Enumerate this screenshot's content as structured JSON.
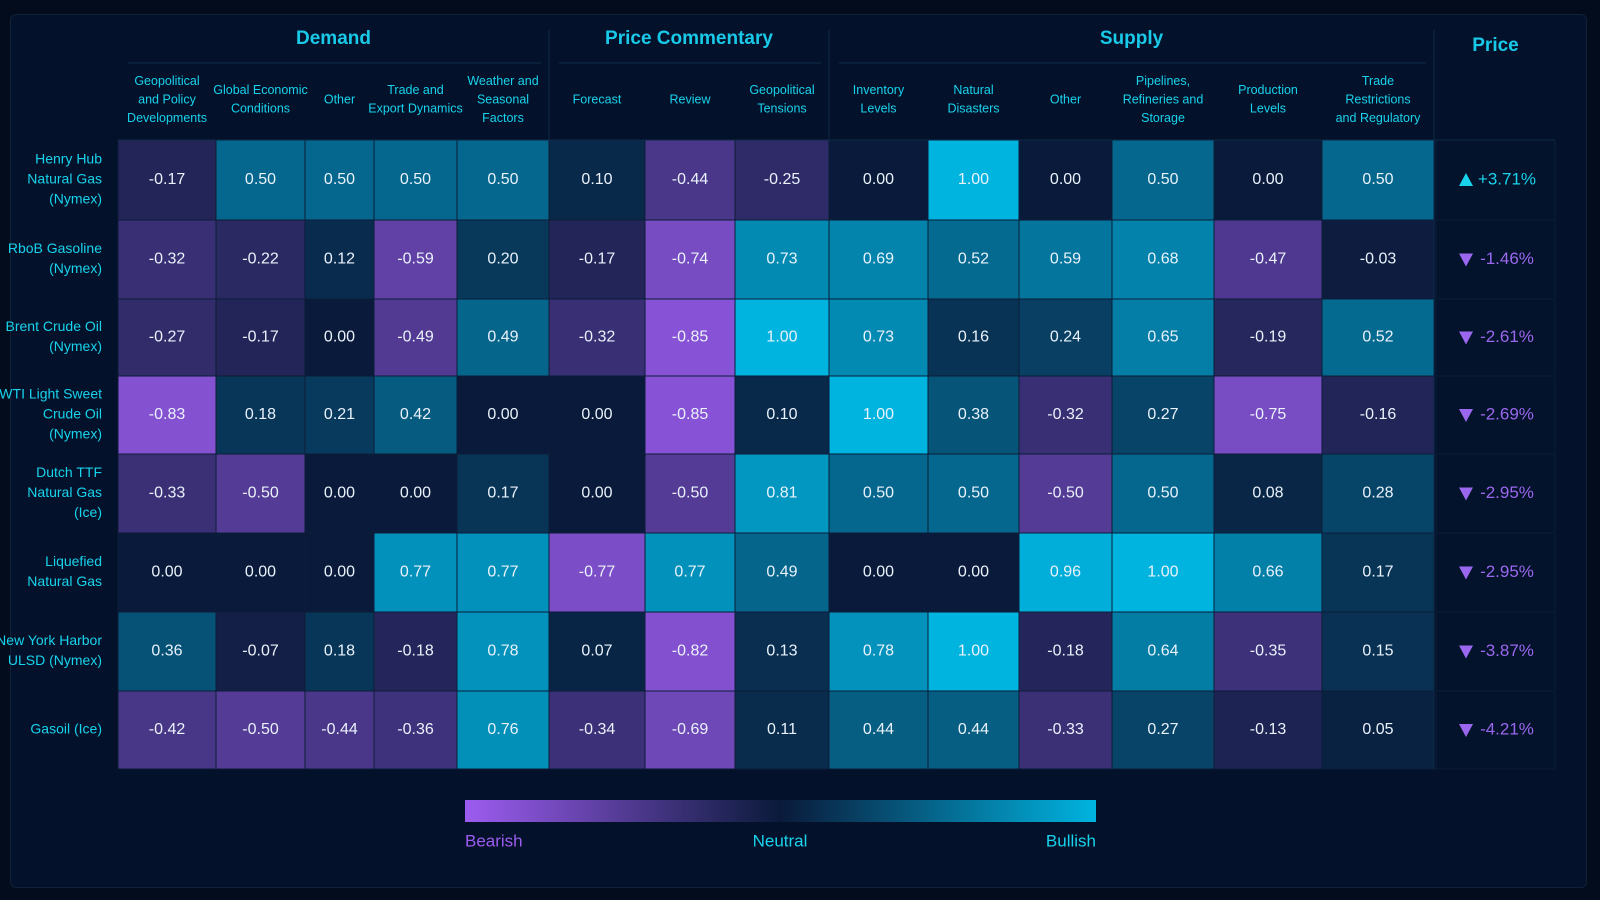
{
  "chart_data": {
    "type": "heatmap",
    "groups": [
      {
        "name": "Demand",
        "columns": [
          "Geopolitical\nand Policy\nDevelopments",
          "Global Economic\nConditions",
          "Other",
          "Trade and\nExport Dynamics",
          "Weather and\nSeasonal\nFactors"
        ]
      },
      {
        "name": "Price Commentary",
        "columns": [
          "Forecast",
          "Review",
          "Geopolitical\nTensions"
        ]
      },
      {
        "name": "Supply",
        "columns": [
          "Inventory\nLevels",
          "Natural\nDisasters",
          "Other",
          "Pipelines,\nRefineries and\nStorage",
          "Production\nLevels",
          "Trade\nRestrictions\nand Regulatory"
        ]
      }
    ],
    "price_header": "Price",
    "rows": [
      {
        "label": "Henry Hub\nNatural Gas\n(Nymex)",
        "price": "+3.71%",
        "direction": "up",
        "values": [
          -0.17,
          0.5,
          0.5,
          0.5,
          0.5,
          0.1,
          -0.44,
          -0.25,
          0.0,
          1.0,
          0.0,
          0.5,
          0.0,
          0.5
        ]
      },
      {
        "label": "RboB Gasoline\n(Nymex)",
        "price": "-1.46%",
        "direction": "down",
        "values": [
          -0.32,
          -0.22,
          0.12,
          -0.59,
          0.2,
          -0.17,
          -0.74,
          0.73,
          0.69,
          0.52,
          0.59,
          0.68,
          -0.47,
          -0.03
        ]
      },
      {
        "label": "Brent Crude Oil\n(Nymex)",
        "price": "-2.61%",
        "direction": "down",
        "values": [
          -0.27,
          -0.17,
          0.0,
          -0.49,
          0.49,
          -0.32,
          -0.85,
          1.0,
          0.73,
          0.16,
          0.24,
          0.65,
          -0.19,
          0.52
        ]
      },
      {
        "label": "WTI Light Sweet\nCrude Oil\n(Nymex)",
        "price": "-2.69%",
        "direction": "down",
        "values": [
          -0.83,
          0.18,
          0.21,
          0.42,
          0.0,
          0.0,
          -0.85,
          0.1,
          1.0,
          0.38,
          -0.32,
          0.27,
          -0.75,
          -0.16
        ]
      },
      {
        "label": "Dutch TTF\nNatural Gas\n(Ice)",
        "price": "-2.95%",
        "direction": "down",
        "values": [
          -0.33,
          -0.5,
          0.0,
          0.0,
          0.17,
          0.0,
          -0.5,
          0.81,
          0.5,
          0.5,
          -0.5,
          0.5,
          0.08,
          0.28
        ]
      },
      {
        "label": "Liquefied\nNatural Gas",
        "price": "-2.95%",
        "direction": "down",
        "values": [
          0.0,
          0.0,
          0.0,
          0.77,
          0.77,
          -0.77,
          0.77,
          0.49,
          0.0,
          0.0,
          0.96,
          1.0,
          0.66,
          0.17
        ]
      },
      {
        "label": "New York Harbor\nULSD (Nymex)",
        "price": "-3.87%",
        "direction": "down",
        "values": [
          0.36,
          -0.07,
          0.18,
          -0.18,
          0.78,
          0.07,
          -0.82,
          0.13,
          0.78,
          1.0,
          -0.18,
          0.64,
          -0.35,
          0.15
        ]
      },
      {
        "label": "Gasoil (Ice)",
        "price": "-4.21%",
        "direction": "down",
        "values": [
          -0.42,
          -0.5,
          -0.44,
          -0.36,
          0.76,
          -0.34,
          -0.69,
          0.11,
          0.44,
          0.44,
          -0.33,
          0.27,
          -0.13,
          0.05
        ]
      }
    ],
    "value_range": [
      -1,
      1
    ],
    "legend": {
      "labels": [
        "Bearish",
        "Neutral",
        "Bullish"
      ],
      "placement": "bottom-center",
      "colors": {
        "bearish": "#9d5cf0",
        "neutral": "#0a1a3a",
        "bullish": "#00b4e0"
      }
    },
    "colors": {
      "up": "#19d3ec",
      "down": "#9b67ef",
      "text": "#19d3ec"
    }
  }
}
